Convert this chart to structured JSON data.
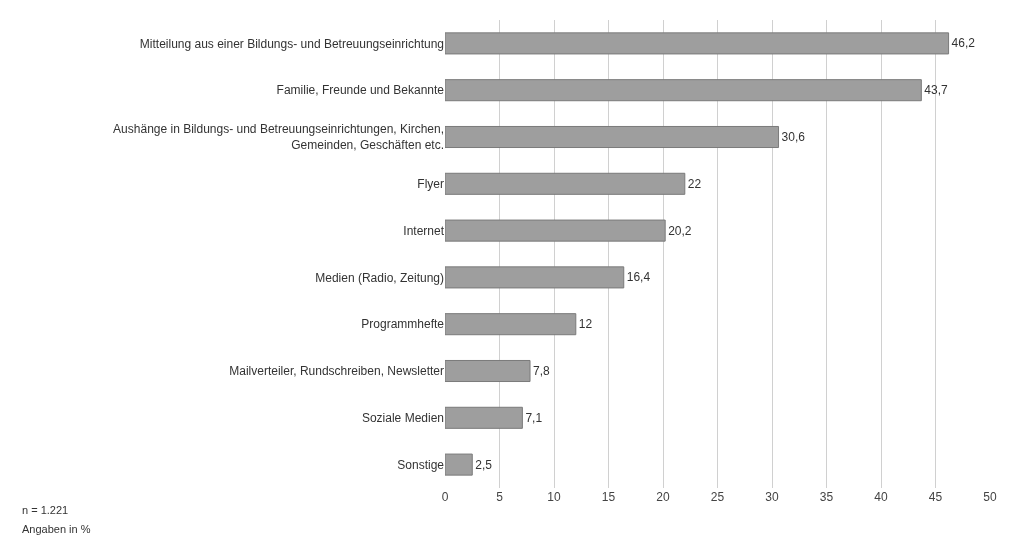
{
  "chart_data": {
    "type": "bar",
    "orientation": "horizontal",
    "categories": [
      "Mitteilung aus einer Bildungs- und Betreuungseinrichtung",
      "Familie, Freunde und Bekannte",
      "Aushänge in Bildungs- und Betreuungseinrichtungen, Kirchen, Gemeinden, Geschäften etc.",
      "Flyer",
      "Internet",
      "Medien (Radio, Zeitung)",
      "Programmhefte",
      "Mailverteiler, Rundschreiben, Newsletter",
      "Soziale Medien",
      "Sonstige"
    ],
    "values": [
      46.2,
      43.7,
      30.6,
      22,
      20.2,
      16.4,
      12,
      7.8,
      7.1,
      2.5
    ],
    "value_labels": [
      "46,2",
      "43,7",
      "30,6",
      "22",
      "20,2",
      "16,4",
      "12",
      "7,8",
      "7,1",
      "2,5"
    ],
    "color": "#9e9e9e",
    "xlim": [
      0,
      50
    ],
    "xticks": [
      0,
      5,
      10,
      15,
      20,
      25,
      30,
      35,
      40,
      45,
      50
    ],
    "grid": "x",
    "annotations": [
      "n = 1.221",
      "Angaben in %"
    ]
  }
}
